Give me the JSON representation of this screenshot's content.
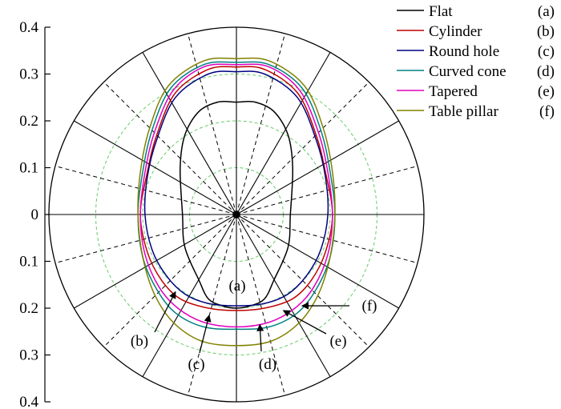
{
  "chart_data": {
    "type": "polar-line",
    "title": "",
    "ylim": [
      -0.4,
      0.4
    ],
    "y_ticks": [
      0.4,
      0.3,
      0.2,
      0.1,
      0,
      -0.1,
      -0.2,
      -0.3,
      -0.4
    ],
    "y_tick_labels": [
      "0.4",
      "0.3",
      "0.2",
      "0.1",
      "0",
      "0.1",
      "0.2",
      "0.3",
      "0.4"
    ],
    "grid": true,
    "legend_position": "top-right",
    "series": [
      {
        "name": "Flat",
        "tag": "(a)",
        "color": "#000000",
        "points": [
          [
            0,
            0.24
          ],
          [
            0.04,
            0.24
          ],
          [
            0.08,
            0.22
          ],
          [
            0.11,
            0.17
          ],
          [
            0.12,
            0.1
          ],
          [
            0.115,
            0
          ],
          [
            0.11,
            -0.07
          ],
          [
            0.08,
            -0.14
          ],
          [
            0.06,
            -0.18
          ],
          [
            0.03,
            -0.195
          ],
          [
            0,
            -0.2
          ],
          [
            -0.03,
            -0.195
          ],
          [
            -0.06,
            -0.18
          ],
          [
            -0.08,
            -0.14
          ],
          [
            -0.11,
            -0.07
          ],
          [
            -0.115,
            0
          ],
          [
            -0.12,
            0.1
          ],
          [
            -0.11,
            0.17
          ],
          [
            -0.08,
            0.22
          ],
          [
            -0.04,
            0.24
          ]
        ]
      },
      {
        "name": "Cylinder",
        "tag": "(b)",
        "color": "#c00000",
        "points": [
          [
            0,
            0.315
          ],
          [
            0.06,
            0.31
          ],
          [
            0.13,
            0.26
          ],
          [
            0.17,
            0.17
          ],
          [
            0.19,
            0.09
          ],
          [
            0.205,
            0
          ],
          [
            0.19,
            -0.08
          ],
          [
            0.16,
            -0.14
          ],
          [
            0.12,
            -0.18
          ],
          [
            0.06,
            -0.2
          ],
          [
            0,
            -0.205
          ],
          [
            -0.06,
            -0.2
          ],
          [
            -0.12,
            -0.18
          ],
          [
            -0.16,
            -0.14
          ],
          [
            -0.19,
            -0.08
          ],
          [
            -0.205,
            0
          ],
          [
            -0.19,
            0.09
          ],
          [
            -0.17,
            0.17
          ],
          [
            -0.13,
            0.26
          ],
          [
            -0.06,
            0.31
          ]
        ]
      },
      {
        "name": "Round hole",
        "tag": "(c)",
        "color": "#000080",
        "points": [
          [
            0,
            0.305
          ],
          [
            0.06,
            0.3
          ],
          [
            0.13,
            0.25
          ],
          [
            0.17,
            0.16
          ],
          [
            0.19,
            0.08
          ],
          [
            0.195,
            0
          ],
          [
            0.18,
            -0.075
          ],
          [
            0.15,
            -0.13
          ],
          [
            0.11,
            -0.17
          ],
          [
            0.06,
            -0.19
          ],
          [
            0,
            -0.195
          ],
          [
            -0.06,
            -0.19
          ],
          [
            -0.11,
            -0.17
          ],
          [
            -0.15,
            -0.13
          ],
          [
            -0.18,
            -0.075
          ],
          [
            -0.195,
            0
          ],
          [
            -0.19,
            0.08
          ],
          [
            -0.17,
            0.16
          ],
          [
            -0.13,
            0.25
          ],
          [
            -0.06,
            0.3
          ]
        ]
      },
      {
        "name": "Curved cone",
        "tag": "(d)",
        "color": "#008080",
        "points": [
          [
            0,
            0.325
          ],
          [
            0.07,
            0.32
          ],
          [
            0.14,
            0.27
          ],
          [
            0.18,
            0.18
          ],
          [
            0.2,
            0.09
          ],
          [
            0.21,
            0
          ],
          [
            0.2,
            -0.09
          ],
          [
            0.17,
            -0.16
          ],
          [
            0.13,
            -0.21
          ],
          [
            0.07,
            -0.24
          ],
          [
            0,
            -0.245
          ],
          [
            -0.07,
            -0.24
          ],
          [
            -0.13,
            -0.21
          ],
          [
            -0.17,
            -0.16
          ],
          [
            -0.2,
            -0.09
          ],
          [
            -0.21,
            0
          ],
          [
            -0.2,
            0.09
          ],
          [
            -0.18,
            0.18
          ],
          [
            -0.14,
            0.27
          ],
          [
            -0.07,
            0.32
          ]
        ]
      },
      {
        "name": "Tapered",
        "tag": "(e)",
        "color": "#e000c0",
        "points": [
          [
            0,
            0.32
          ],
          [
            0.07,
            0.315
          ],
          [
            0.135,
            0.265
          ],
          [
            0.175,
            0.175
          ],
          [
            0.195,
            0.09
          ],
          [
            0.205,
            0
          ],
          [
            0.195,
            -0.085
          ],
          [
            0.165,
            -0.155
          ],
          [
            0.125,
            -0.2
          ],
          [
            0.07,
            -0.23
          ],
          [
            0,
            -0.24
          ],
          [
            -0.07,
            -0.23
          ],
          [
            -0.125,
            -0.2
          ],
          [
            -0.165,
            -0.155
          ],
          [
            -0.195,
            -0.085
          ],
          [
            -0.205,
            0
          ],
          [
            -0.195,
            0.09
          ],
          [
            -0.175,
            0.175
          ],
          [
            -0.135,
            0.265
          ],
          [
            -0.07,
            0.315
          ]
        ]
      },
      {
        "name": "Table pillar",
        "tag": "(f)",
        "color": "#808000",
        "points": [
          [
            0,
            0.333
          ],
          [
            0.07,
            0.328
          ],
          [
            0.145,
            0.275
          ],
          [
            0.185,
            0.185
          ],
          [
            0.205,
            0.09
          ],
          [
            0.21,
            0
          ],
          [
            0.2,
            -0.09
          ],
          [
            0.175,
            -0.17
          ],
          [
            0.135,
            -0.23
          ],
          [
            0.075,
            -0.27
          ],
          [
            0,
            -0.28
          ],
          [
            -0.075,
            -0.27
          ],
          [
            -0.135,
            -0.23
          ],
          [
            -0.175,
            -0.17
          ],
          [
            -0.2,
            -0.09
          ],
          [
            -0.21,
            0
          ],
          [
            -0.205,
            0.09
          ],
          [
            -0.185,
            0.185
          ],
          [
            -0.145,
            0.275
          ],
          [
            -0.07,
            0.328
          ]
        ]
      }
    ],
    "annotations": [
      {
        "label": "(a)",
        "target": [
          0,
          -0.2
        ]
      },
      {
        "label": "(b)",
        "target": [
          -0.13,
          -0.165
        ]
      },
      {
        "label": "(c)",
        "target": [
          -0.058,
          -0.215
        ]
      },
      {
        "label": "(d)",
        "target": [
          0.05,
          -0.235
        ]
      },
      {
        "label": "(e)",
        "target": [
          0.1,
          -0.205
        ]
      },
      {
        "label": "(f)",
        "target": [
          0.14,
          -0.195
        ]
      }
    ]
  }
}
